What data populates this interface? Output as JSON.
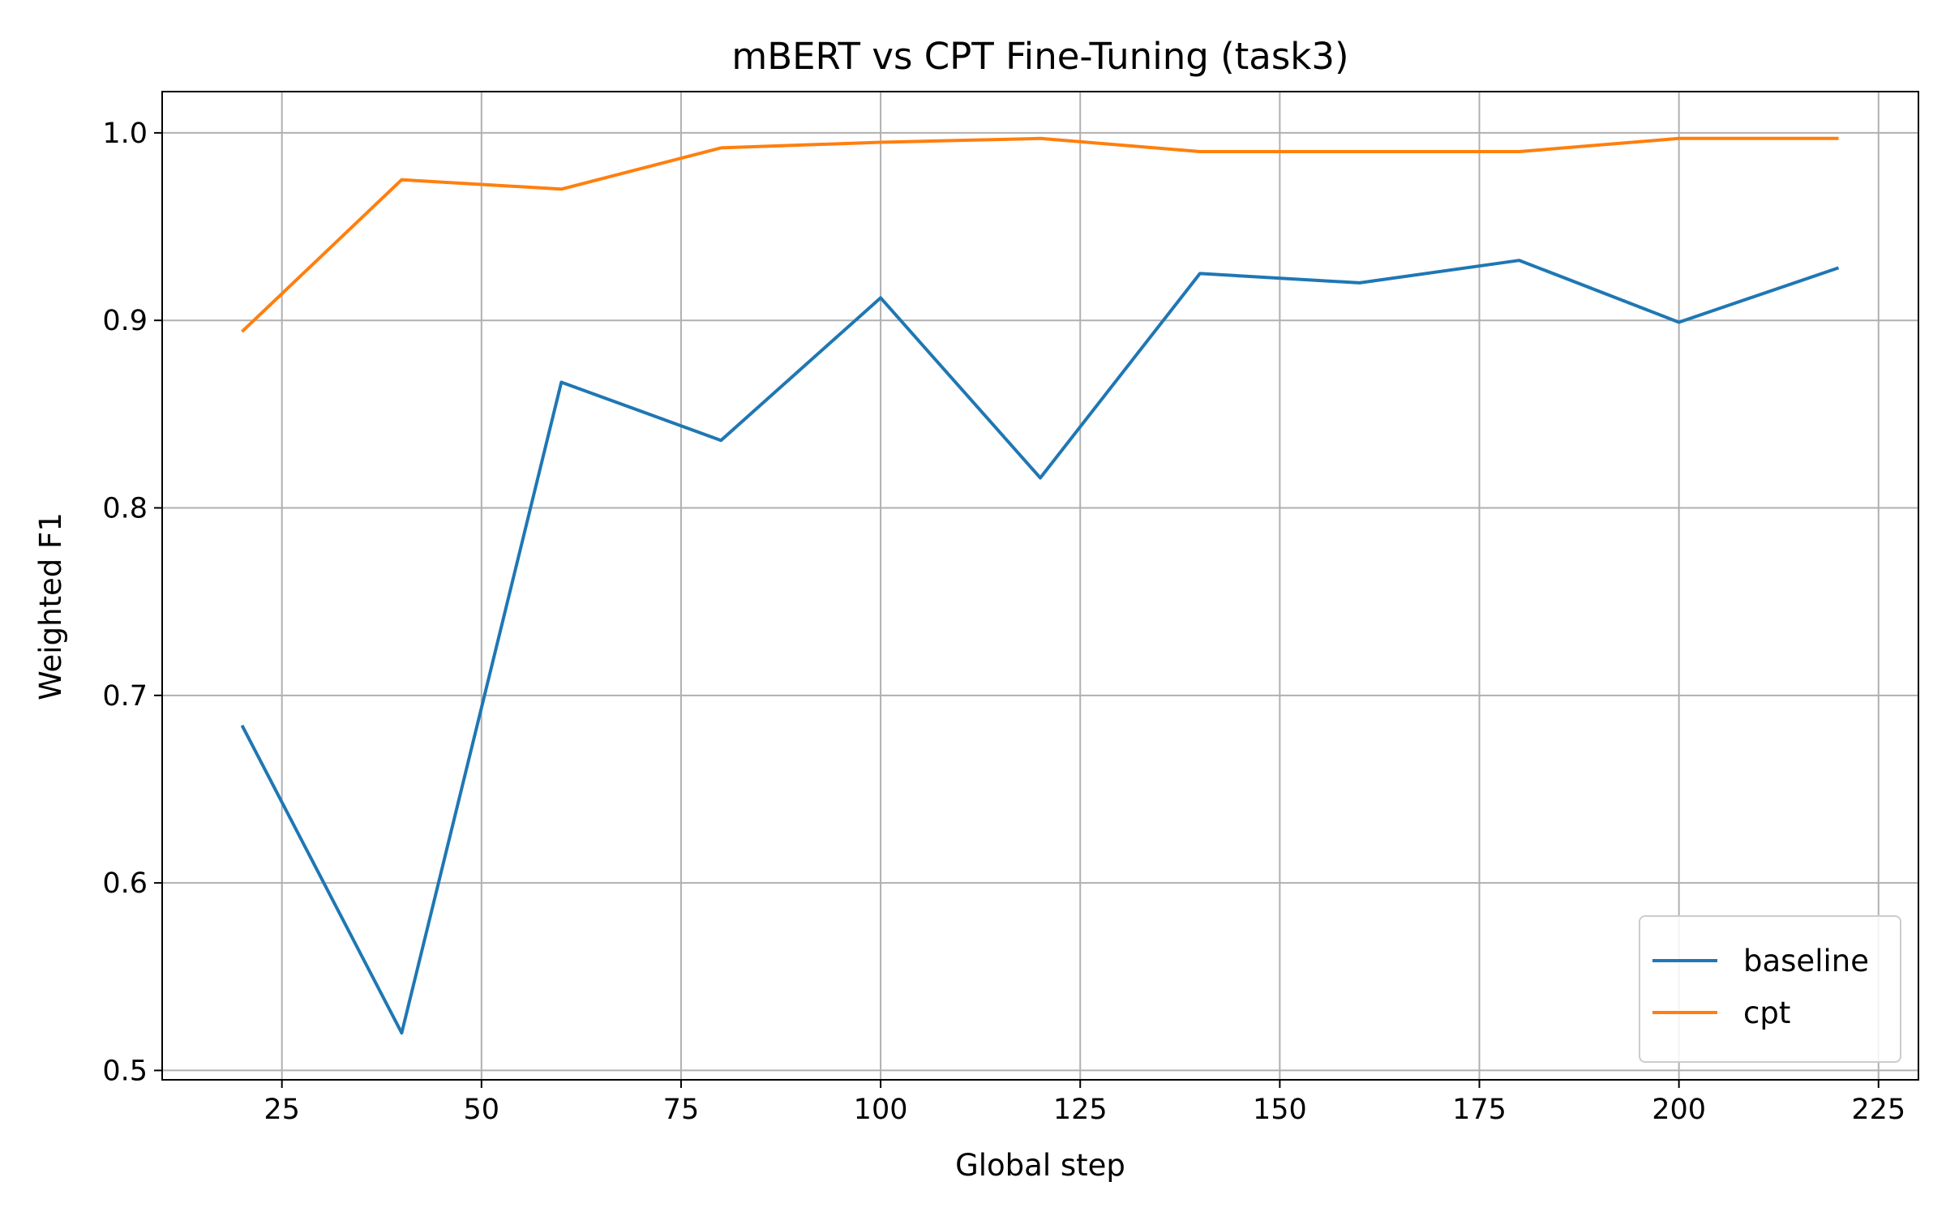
{
  "chart_data": {
    "type": "line",
    "title": "mBERT vs CPT Fine-Tuning (task3)",
    "xlabel": "Global step",
    "ylabel": "Weighted F1",
    "x": [
      20,
      40,
      60,
      80,
      100,
      120,
      140,
      160,
      180,
      200,
      220
    ],
    "xlim": [
      10,
      230
    ],
    "ylim": [
      0.495,
      1.022
    ],
    "xticks": [
      25,
      50,
      75,
      100,
      125,
      150,
      175,
      200,
      225
    ],
    "yticks": [
      0.5,
      0.6,
      0.7,
      0.8,
      0.9,
      1.0
    ],
    "xtick_labels": [
      "25",
      "50",
      "75",
      "100",
      "125",
      "150",
      "175",
      "200",
      "225"
    ],
    "ytick_labels": [
      "0.5",
      "0.6",
      "0.7",
      "0.8",
      "0.9",
      "1.0"
    ],
    "grid": true,
    "legend_position": "lower-right",
    "series": [
      {
        "name": "baseline",
        "color": "#1f77b4",
        "values": [
          0.684,
          0.52,
          0.867,
          0.836,
          0.912,
          0.816,
          0.925,
          0.92,
          0.932,
          0.899,
          0.928
        ]
      },
      {
        "name": "cpt",
        "color": "#ff7f0e",
        "values": [
          0.894,
          0.975,
          0.97,
          0.992,
          0.995,
          0.997,
          0.99,
          0.99,
          0.99,
          0.997,
          0.997
        ]
      }
    ]
  }
}
